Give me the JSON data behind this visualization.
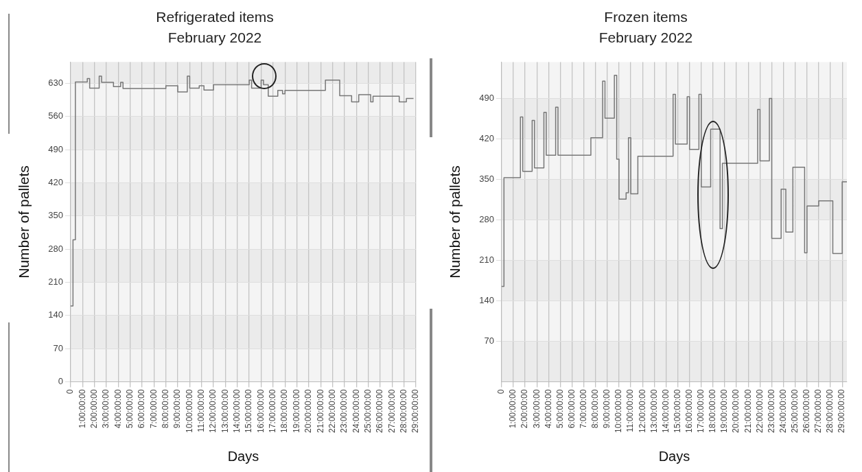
{
  "chart_data": [
    {
      "type": "step",
      "title": "Refrigerated items",
      "subtitle": "February 2022",
      "xlabel": "Days",
      "ylabel": "Number of pallets",
      "categories": [
        "0",
        null,
        null,
        null,
        null,
        "1:00:00:00",
        null,
        null,
        null,
        null,
        "2:00:00:00",
        null,
        null,
        null,
        null,
        "3:00:00:00",
        null,
        null,
        null,
        null,
        "4:00:00:00",
        null,
        null,
        null,
        null,
        "5:00:00:00",
        null,
        null,
        null,
        null,
        "6:00:00:00",
        null,
        null,
        null,
        null,
        "7:00:00:00",
        null,
        null,
        null,
        null,
        "8:00:00:00",
        null,
        null,
        null,
        null,
        "9:00:00:00",
        null,
        null,
        null,
        null,
        "10:00:00:00",
        null,
        null,
        null,
        null,
        "11:00:00:00",
        null,
        null,
        null,
        null,
        "12:00:00:00",
        null,
        null,
        null,
        null,
        "13:00:00:00",
        null,
        null,
        null,
        null,
        "14:00:00:00",
        null,
        null,
        null,
        null,
        "15:00:00:00",
        null,
        null,
        null,
        null,
        "16:00:00:00",
        null,
        null,
        null,
        null,
        "17:00:00:00",
        null,
        null,
        null,
        null,
        "18:00:00:00",
        null,
        null,
        null,
        null,
        "19:00:00:00",
        null,
        null,
        null,
        null,
        "20:00:00:00",
        null,
        null,
        null,
        null,
        "21:00:00:00",
        null,
        null,
        null,
        null,
        "22:00:00:00",
        null,
        null,
        null,
        null,
        "23:00:00:00",
        null,
        null,
        null,
        null,
        "24:00:00:00",
        null,
        null,
        null,
        null,
        "25:00:00:00",
        null,
        null,
        null,
        null,
        "26:00:00:00",
        null,
        null,
        null,
        null,
        "27:00:00:00",
        null,
        null,
        null,
        null,
        "28:00:00:00",
        null,
        null,
        null,
        null,
        "29:00:00:00"
      ],
      "series": [
        {
          "color": "#777777",
          "values": [
            160,
            300,
            633,
            633,
            633,
            633,
            633,
            640,
            620,
            620,
            620,
            620,
            645,
            632,
            632,
            632,
            632,
            632,
            623,
            623,
            623,
            632,
            619,
            619,
            619,
            619,
            619,
            619,
            619,
            619,
            619,
            619,
            619,
            619,
            619,
            619,
            619,
            619,
            619,
            619,
            625,
            625,
            625,
            625,
            625,
            612,
            612,
            612,
            612,
            645,
            620,
            620,
            620,
            620,
            625,
            625,
            616,
            616,
            616,
            616,
            627,
            627,
            627,
            627,
            627,
            627,
            627,
            627,
            627,
            627,
            627,
            627,
            627,
            627,
            627,
            637,
            620,
            620,
            620,
            620,
            637,
            627,
            627,
            603,
            603,
            603,
            603,
            615,
            615,
            608,
            615,
            615,
            615,
            615,
            615,
            615,
            615,
            615,
            615,
            615,
            615,
            615,
            615,
            615,
            615,
            615,
            615,
            637,
            637,
            637,
            637,
            637,
            637,
            604,
            604,
            604,
            604,
            604,
            591,
            591,
            591,
            606,
            606,
            606,
            606,
            606,
            591,
            603,
            603,
            603,
            603,
            603,
            603,
            603,
            603,
            603,
            603,
            603,
            591,
            591,
            591,
            598,
            598,
            598,
            598,
            null
          ]
        }
      ],
      "ylim": [
        0,
        675
      ],
      "yticks": [
        0,
        70,
        140,
        210,
        280,
        350,
        420,
        490,
        560,
        630
      ],
      "grid": true,
      "legend": false
    },
    {
      "type": "step",
      "title": "Frozen items",
      "subtitle": "February 2022",
      "xlabel": "Days",
      "ylabel": "Number of pallets",
      "categories": [
        "0",
        null,
        null,
        null,
        null,
        "1:00:00:00",
        null,
        null,
        null,
        null,
        "2:00:00:00",
        null,
        null,
        null,
        null,
        "3:00:00:00",
        null,
        null,
        null,
        null,
        "4:00:00:00",
        null,
        null,
        null,
        null,
        "5:00:00:00",
        null,
        null,
        null,
        null,
        "6:00:00:00",
        null,
        null,
        null,
        null,
        "7:00:00:00",
        null,
        null,
        null,
        null,
        "8:00:00:00",
        null,
        null,
        null,
        null,
        "9:00:00:00",
        null,
        null,
        null,
        null,
        "10:00:00:00",
        null,
        null,
        null,
        null,
        "11:00:00:00",
        null,
        null,
        null,
        null,
        "12:00:00:00",
        null,
        null,
        null,
        null,
        "13:00:00:00",
        null,
        null,
        null,
        null,
        "14:00:00:00",
        null,
        null,
        null,
        null,
        "15:00:00:00",
        null,
        null,
        null,
        null,
        "16:00:00:00",
        null,
        null,
        null,
        null,
        "17:00:00:00",
        null,
        null,
        null,
        null,
        "18:00:00:00",
        null,
        null,
        null,
        null,
        "19:00:00:00",
        null,
        null,
        null,
        null,
        "20:00:00:00",
        null,
        null,
        null,
        null,
        "21:00:00:00",
        null,
        null,
        null,
        null,
        "22:00:00:00",
        null,
        null,
        null,
        null,
        "23:00:00:00",
        null,
        null,
        null,
        null,
        "24:00:00:00",
        null,
        null,
        null,
        null,
        "25:00:00:00",
        null,
        null,
        null,
        null,
        "26:00:00:00",
        null,
        null,
        null,
        null,
        "27:00:00:00",
        null,
        null,
        null,
        null,
        "28:00:00:00",
        null,
        null,
        null,
        null,
        "29:00:00:00",
        null,
        null
      ],
      "series": [
        {
          "color": "#777777",
          "values": [
            165,
            353,
            353,
            353,
            353,
            353,
            353,
            353,
            458,
            364,
            364,
            364,
            364,
            452,
            370,
            370,
            370,
            370,
            466,
            392,
            392,
            392,
            392,
            475,
            392,
            392,
            392,
            392,
            392,
            392,
            392,
            392,
            392,
            392,
            392,
            392,
            392,
            392,
            422,
            422,
            422,
            422,
            422,
            520,
            456,
            456,
            456,
            456,
            530,
            385,
            316,
            316,
            316,
            327,
            422,
            325,
            325,
            325,
            390,
            390,
            390,
            390,
            390,
            390,
            390,
            390,
            390,
            390,
            390,
            390,
            390,
            390,
            390,
            497,
            411,
            411,
            411,
            411,
            411,
            493,
            402,
            402,
            402,
            402,
            497,
            337,
            337,
            337,
            337,
            437,
            437,
            437,
            437,
            265,
            378,
            378,
            378,
            378,
            378,
            378,
            378,
            378,
            378,
            378,
            378,
            378,
            378,
            378,
            378,
            471,
            382,
            382,
            382,
            382,
            490,
            248,
            248,
            248,
            248,
            333,
            333,
            259,
            259,
            259,
            371,
            371,
            371,
            371,
            371,
            223,
            304,
            304,
            304,
            304,
            304,
            313,
            313,
            313,
            313,
            313,
            313,
            222,
            222,
            222,
            222,
            346,
            346,
            346
          ]
        }
      ],
      "ylim": [
        0,
        553
      ],
      "yticks": [
        70,
        140,
        210,
        280,
        350,
        420,
        490
      ],
      "grid": true,
      "legend": false
    }
  ]
}
